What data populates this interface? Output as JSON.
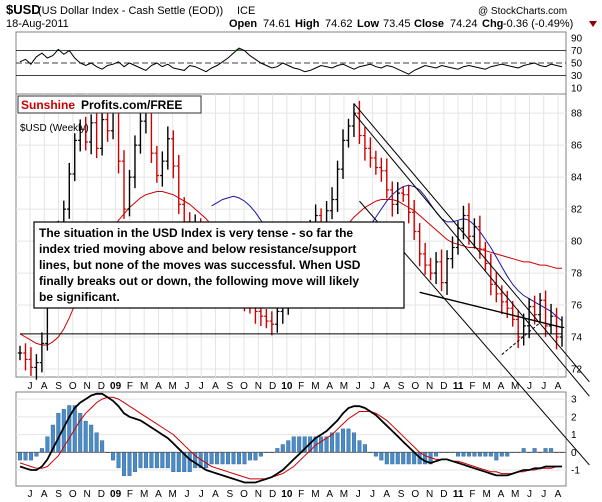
{
  "header": {
    "symbol": "$USD",
    "name": "(US Dollar Index - Cash Settle (EOD))",
    "exchange": "ICE",
    "date": "18-Aug-2011",
    "open_label": "Open",
    "open": "74.61",
    "high_label": "High",
    "high": "74.62",
    "low_label": "Low",
    "low": "73.45",
    "close_label": "Close",
    "close": "74.24",
    "chg_label": "Chg",
    "chg": "-0.36 (-0.49%)",
    "watermark": "@ StockCharts.com"
  },
  "brand": {
    "part1": "Sunshine",
    "part2": "Profits.com/FREE"
  },
  "price_label": "$USD (Weekly)",
  "annotation": [
    "The situation in the USD Index is very tense - so far the",
    "index tried moving above and below resistance/support",
    "lines, but none of the moves was successful. When USD",
    "finally breaks out or down, the following move will likely",
    "be significant."
  ],
  "colors": {
    "up": "#000000",
    "down": "#cc0000",
    "ma_short": "#cc0000",
    "ma_long": "#1a1aa6",
    "histogram": "#4a8cc8",
    "rsi_fill": "#669966",
    "brand_red": "#cc0000"
  },
  "chart_data": [
    {
      "type": "line",
      "name": "RSI",
      "y_ticks": [
        "90",
        "70",
        "50",
        "30",
        "10"
      ],
      "ylim": [
        0,
        100
      ],
      "reference_lines": [
        70,
        50,
        30
      ],
      "values": [
        52,
        56,
        48,
        60,
        66,
        58,
        62,
        72,
        64,
        70,
        58,
        50,
        46,
        50,
        44,
        40,
        46,
        48,
        52,
        44,
        50,
        46,
        42,
        38,
        46,
        50,
        44,
        48,
        42,
        40,
        38,
        46,
        44,
        40,
        36,
        42,
        46,
        52,
        58,
        66,
        74,
        70,
        62,
        56,
        50,
        46,
        42,
        44,
        50,
        46,
        42,
        40,
        36,
        38,
        42,
        46,
        44,
        42,
        46,
        48,
        44,
        40,
        44,
        46,
        48,
        44,
        42,
        46,
        44,
        40,
        36,
        32,
        38,
        42,
        46,
        44,
        42,
        46,
        44,
        42,
        40,
        44,
        46,
        44,
        42,
        40,
        44,
        46,
        48,
        46,
        44,
        42,
        46,
        48,
        50,
        46,
        44,
        48,
        46,
        44
      ]
    },
    {
      "type": "bar",
      "name": "$USD (Weekly)",
      "bar_style": "ohlc",
      "y_ticks": [
        "88",
        "86",
        "84",
        "82",
        "80",
        "78",
        "76",
        "74",
        "72"
      ],
      "ylim": [
        71.5,
        89.2
      ],
      "x_ticks": [
        "J",
        "A",
        "S",
        "O",
        "N",
        "D",
        "09",
        "F",
        "M",
        "A",
        "M",
        "J",
        "J",
        "A",
        "S",
        "O",
        "N",
        "D",
        "10",
        "F",
        "M",
        "A",
        "M",
        "J",
        "J",
        "A",
        "S",
        "O",
        "N",
        "D",
        "11",
        "F",
        "M",
        "A",
        "M",
        "J",
        "J",
        "A"
      ],
      "closes": [
        73.0,
        72.6,
        72.1,
        72.4,
        73.6,
        77.0,
        79.2,
        80.5,
        82.0,
        84.2,
        86.3,
        87.0,
        86.2,
        87.4,
        85.8,
        87.6,
        86.9,
        88.2,
        85.0,
        82.0,
        84.0,
        86.0,
        87.5,
        88.3,
        85.5,
        84.1,
        85.0,
        86.4,
        84.7,
        82.3,
        81.2,
        80.5,
        80.9,
        80.2,
        79.4,
        79.1,
        78.5,
        78.2,
        77.6,
        77.3,
        76.9,
        76.3,
        76.0,
        75.6,
        75.3,
        75.0,
        74.8,
        75.6,
        76.0,
        76.6,
        77.4,
        79.0,
        80.3,
        80.8,
        81.6,
        80.5,
        81.9,
        82.6,
        84.5,
        86.3,
        87.2,
        88.0,
        86.6,
        85.8,
        85.2,
        84.6,
        84.4,
        83.2,
        82.3,
        83.0,
        82.9,
        81.8,
        80.6,
        79.2,
        78.5,
        78.0,
        78.7,
        77.4,
        78.9,
        79.6,
        80.8,
        81.6,
        80.3,
        80.9,
        79.5,
        78.6,
        77.3,
        76.7,
        76.2,
        75.8,
        75.1,
        74.0,
        74.7,
        75.9,
        75.4,
        76.3,
        74.7,
        75.3,
        74.0,
        74.6
      ],
      "series": [
        {
          "name": "MA short",
          "values": [
            74.2,
            74.0,
            73.8,
            73.6,
            73.5,
            73.5,
            73.7,
            74.0,
            74.5,
            75.2,
            76.0,
            76.8,
            77.6,
            78.3,
            79.0,
            79.6,
            80.2,
            80.8,
            81.3,
            81.7,
            82.1,
            82.4,
            82.7,
            82.9,
            83.0,
            83.1,
            83.1,
            83.0,
            82.9,
            82.7,
            82.5,
            82.3,
            82.0,
            81.7,
            81.4,
            81.0,
            80.7,
            80.3,
            79.9,
            79.5,
            79.1,
            78.8,
            78.5,
            78.3,
            78.1,
            77.9,
            77.8,
            77.7,
            77.7,
            77.8,
            77.9,
            78.1,
            78.3,
            78.6,
            78.9,
            79.2,
            79.6,
            79.9,
            80.3,
            80.7,
            81.1,
            81.5,
            81.8,
            82.1,
            82.3,
            82.5,
            82.6,
            82.6,
            82.6,
            82.5,
            82.3,
            82.1,
            81.9,
            81.6,
            81.3,
            81.0,
            80.7,
            80.4,
            80.1,
            79.9,
            79.8,
            79.7,
            79.6,
            79.6,
            79.5,
            79.4,
            79.3,
            79.2,
            79.1,
            79.0,
            78.9,
            78.8,
            78.7,
            78.7,
            78.6,
            78.5,
            78.5,
            78.4,
            78.3,
            78.3
          ]
        },
        {
          "name": "MA long",
          "values": [
            null,
            null,
            null,
            null,
            null,
            null,
            null,
            null,
            null,
            null,
            null,
            null,
            null,
            null,
            null,
            null,
            null,
            null,
            null,
            null,
            null,
            null,
            null,
            null,
            null,
            null,
            null,
            null,
            null,
            null,
            null,
            null,
            null,
            null,
            null,
            82.2,
            82.4,
            82.6,
            82.7,
            82.8,
            82.7,
            82.5,
            82.2,
            81.8,
            81.3,
            80.8,
            80.2,
            79.6,
            79.1,
            78.6,
            78.2,
            78.0,
            78.0,
            78.0,
            78.1,
            78.2,
            78.3,
            78.4,
            78.6,
            78.8,
            79.1,
            79.5,
            80.0,
            80.5,
            81.0,
            81.5,
            82.0,
            82.5,
            82.9,
            83.2,
            83.4,
            83.5,
            83.4,
            83.2,
            82.8,
            82.3,
            81.8,
            81.4,
            81.2,
            81.2,
            81.3,
            81.4,
            81.3,
            81.0,
            80.6,
            80.1,
            79.6,
            79.0,
            78.4,
            77.8,
            77.3,
            76.9,
            76.6,
            76.4,
            76.2,
            76.0,
            75.8,
            75.6,
            75.3,
            75.0
          ]
        }
      ]
    },
    {
      "type": "line",
      "name": "MACD",
      "y_ticks": [
        "3",
        "2",
        "1",
        "0",
        "-1"
      ],
      "ylim": [
        -1.9,
        3.4
      ],
      "series": [
        {
          "name": "MACD",
          "values": [
            -0.8,
            -0.9,
            -1.0,
            -1.0,
            -0.8,
            -0.4,
            0.2,
            0.8,
            1.4,
            2.0,
            2.5,
            2.8,
            3.0,
            3.2,
            3.3,
            3.3,
            3.1,
            2.9,
            2.6,
            2.2,
            2.0,
            1.9,
            1.8,
            1.6,
            1.4,
            1.2,
            1.0,
            0.8,
            0.5,
            0.2,
            -0.1,
            -0.4,
            -0.6,
            -0.8,
            -1.0,
            -1.1,
            -1.2,
            -1.3,
            -1.4,
            -1.5,
            -1.6,
            -1.7,
            -1.7,
            -1.7,
            -1.6,
            -1.5,
            -1.4,
            -1.2,
            -1.0,
            -0.7,
            -0.4,
            -0.1,
            0.2,
            0.5,
            0.8,
            1.0,
            1.2,
            1.5,
            1.8,
            2.2,
            2.5,
            2.6,
            2.6,
            2.5,
            2.3,
            2.1,
            1.8,
            1.5,
            1.2,
            0.9,
            0.6,
            0.3,
            0.0,
            -0.3,
            -0.5,
            -0.6,
            -0.5,
            -0.4,
            -0.4,
            -0.5,
            -0.6,
            -0.7,
            -0.8,
            -0.9,
            -1.0,
            -1.1,
            -1.2,
            -1.3,
            -1.3,
            -1.3,
            -1.2,
            -1.1,
            -1.0,
            -1.0,
            -0.9,
            -0.9,
            -0.8,
            -0.8,
            -0.8,
            -0.8
          ]
        },
        {
          "name": "Signal",
          "values": [
            -0.6,
            -0.7,
            -0.8,
            -0.9,
            -0.9,
            -0.8,
            -0.5,
            -0.2,
            0.3,
            0.8,
            1.3,
            1.8,
            2.2,
            2.5,
            2.8,
            3.0,
            3.1,
            3.1,
            3.0,
            2.8,
            2.6,
            2.4,
            2.2,
            2.0,
            1.8,
            1.6,
            1.4,
            1.2,
            1.0,
            0.7,
            0.4,
            0.1,
            -0.2,
            -0.4,
            -0.6,
            -0.8,
            -0.9,
            -1.0,
            -1.1,
            -1.2,
            -1.3,
            -1.4,
            -1.5,
            -1.5,
            -1.5,
            -1.5,
            -1.4,
            -1.3,
            -1.2,
            -1.0,
            -0.8,
            -0.5,
            -0.2,
            0.1,
            0.4,
            0.6,
            0.8,
            1.0,
            1.3,
            1.6,
            1.9,
            2.1,
            2.3,
            2.3,
            2.3,
            2.2,
            2.0,
            1.8,
            1.5,
            1.2,
            0.9,
            0.6,
            0.3,
            0.0,
            -0.2,
            -0.3,
            -0.4,
            -0.4,
            -0.4,
            -0.5,
            -0.5,
            -0.6,
            -0.7,
            -0.8,
            -0.9,
            -1.0,
            -1.1,
            -1.1,
            -1.2,
            -1.2,
            -1.2,
            -1.1,
            -1.1,
            -1.0,
            -1.0,
            -0.9,
            -0.9,
            -0.9,
            -0.8,
            -0.8
          ]
        }
      ]
    }
  ]
}
